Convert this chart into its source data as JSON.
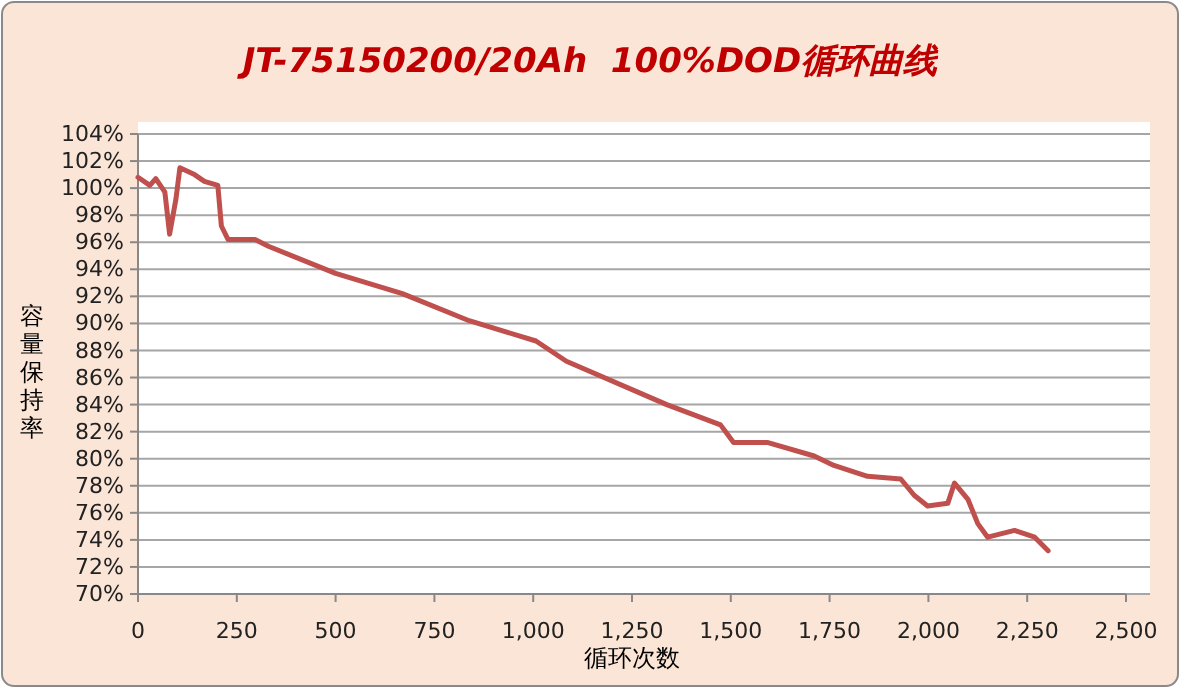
{
  "chart_data": {
    "type": "line",
    "title": "JT-75150200/20Ah  100%DOD循环曲线",
    "xlabel": "循环次数",
    "ylabel": "容量保持率",
    "x": [
      0,
      30,
      45,
      68,
      80,
      96,
      106,
      143,
      168,
      202,
      211,
      228,
      296,
      330,
      500,
      669,
      838,
      1007,
      1084,
      1338,
      1474,
      1507,
      1592,
      1711,
      1761,
      1846,
      1930,
      1964,
      1998,
      2049,
      2066,
      2100,
      2125,
      2150,
      2218,
      2269,
      2303
    ],
    "series": [
      {
        "color": "#c0504d",
        "values": [
          100.8,
          100.2,
          100.7,
          99.7,
          96.6,
          99.2,
          101.5,
          101,
          100.5,
          100.2,
          97.2,
          96.2,
          96.2,
          95.7,
          93.7,
          92.2,
          90.2,
          88.7,
          87.2,
          84,
          82.5,
          81.2,
          81.2,
          80.2,
          79.5,
          78.7,
          78.5,
          77.3,
          76.5,
          76.7,
          78.2,
          77,
          75.2,
          74.2,
          74.7,
          74.2,
          73.2
        ]
      }
    ],
    "xlim": [
      0,
      2500
    ],
    "xticks": [
      0,
      250,
      500,
      750,
      {
        "value": 1000,
        "label": "1,000"
      },
      {
        "value": 1250,
        "label": "1,250"
      },
      {
        "value": 1500,
        "label": "1,500"
      },
      {
        "value": 1750,
        "label": "1,750"
      },
      {
        "value": 2000,
        "label": "2,000"
      },
      {
        "value": 2250,
        "label": "2,250"
      },
      {
        "value": 2500,
        "label": "2,500"
      }
    ],
    "ylim": [
      70,
      104
    ],
    "yticks": [
      {
        "value": 70,
        "label": "70%"
      },
      {
        "value": 72,
        "label": "72%"
      },
      {
        "value": 74,
        "label": "74%"
      },
      {
        "value": 76,
        "label": "76%"
      },
      {
        "value": 78,
        "label": "78%"
      },
      {
        "value": 80,
        "label": "80%"
      },
      {
        "value": 82,
        "label": "82%"
      },
      {
        "value": 84,
        "label": "84%"
      },
      {
        "value": 86,
        "label": "86%"
      },
      {
        "value": 88,
        "label": "88%"
      },
      {
        "value": 90,
        "label": "90%"
      },
      {
        "value": 92,
        "label": "92%"
      },
      {
        "value": 94,
        "label": "94%"
      },
      {
        "value": 96,
        "label": "96%"
      },
      {
        "value": 98,
        "label": "98%"
      },
      {
        "value": 100,
        "label": "100%"
      },
      {
        "value": 102,
        "label": "102%"
      },
      {
        "value": 104,
        "label": "104%"
      }
    ],
    "grid": "y",
    "marker": "none",
    "line_style": "solid"
  }
}
